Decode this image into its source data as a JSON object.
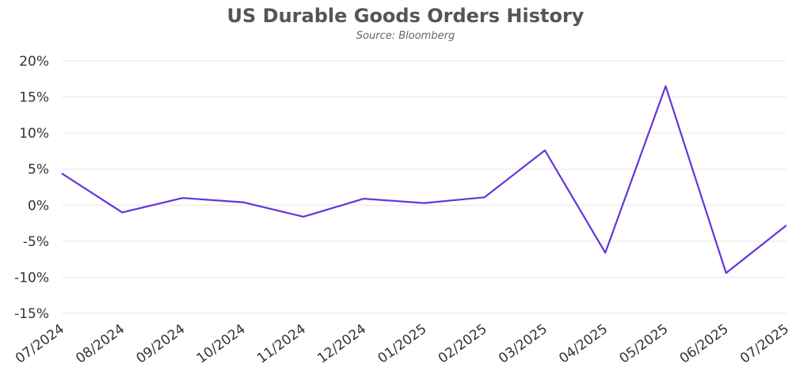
{
  "chart_data": {
    "type": "line",
    "title": "US Durable Goods Orders History",
    "subtitle": "Source: Bloomberg",
    "xlabel": "",
    "ylabel": "",
    "ylim": [
      -15,
      20
    ],
    "yticks": [
      20,
      15,
      10,
      5,
      0,
      -5,
      -10,
      -15
    ],
    "ytick_labels": [
      "20%",
      "15%",
      "10%",
      "5%",
      "0%",
      "-5%",
      "-10%",
      "-15%"
    ],
    "categories": [
      "07/2024",
      "08/2024",
      "09/2024",
      "10/2024",
      "11/2024",
      "12/2024",
      "01/2025",
      "02/2025",
      "03/2025",
      "04/2025",
      "05/2025",
      "06/2025",
      "07/2025"
    ],
    "series": [
      {
        "values": [
          4.4,
          -1.0,
          1.0,
          0.4,
          -1.6,
          0.9,
          0.3,
          1.1,
          7.6,
          -6.6,
          16.5,
          -9.4,
          -2.8
        ],
        "color": "#6633dd"
      }
    ],
    "grid": true,
    "line_color": "#6633dd",
    "grid_color": "#e6e6e6"
  }
}
